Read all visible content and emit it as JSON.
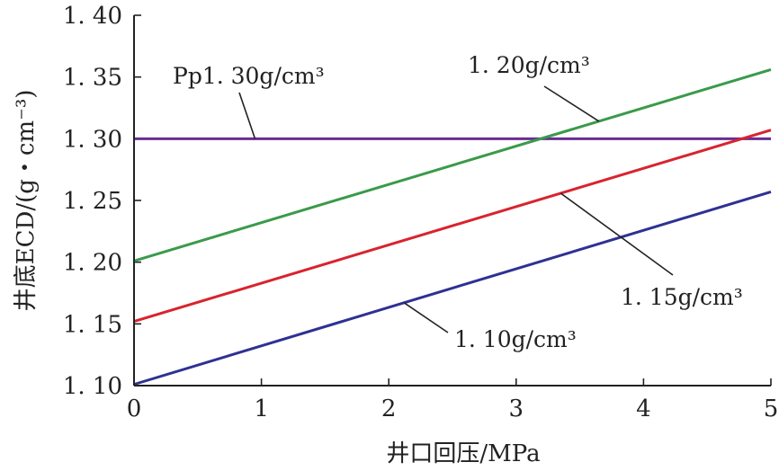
{
  "chart_data": {
    "type": "line",
    "xlabel": "井口回压/MPa",
    "ylabel": "井底ECD/(g・cm⁻³)",
    "xlim": [
      0,
      5
    ],
    "ylim": [
      1.1,
      1.4
    ],
    "x_ticks": [
      0,
      1,
      2,
      3,
      4,
      5
    ],
    "y_ticks": [
      1.1,
      1.15,
      1.2,
      1.25,
      1.3,
      1.35,
      1.4
    ],
    "x_tick_labels": [
      "0",
      "1",
      "2",
      "3",
      "4",
      "5"
    ],
    "y_tick_labels": [
      "1. 10",
      "1. 15",
      "1. 20",
      "1. 25",
      "1. 30",
      "1. 35",
      "1. 40"
    ],
    "grid": false,
    "series": [
      {
        "key": "pp",
        "label": "Pp1. 30g/cm³",
        "color": "#6a2c91",
        "x": [
          0,
          5
        ],
        "y": [
          1.3,
          1.3
        ]
      },
      {
        "key": "d120",
        "label": "1. 20g/cm³",
        "color": "#3a9a4a",
        "x": [
          0,
          5
        ],
        "y": [
          1.201,
          1.356
        ]
      },
      {
        "key": "d115",
        "label": "1. 15g/cm³",
        "color": "#d9232e",
        "x": [
          0,
          5
        ],
        "y": [
          1.152,
          1.307
        ]
      },
      {
        "key": "d110",
        "label": "1. 10g/cm³",
        "color": "#2e3192",
        "x": [
          0,
          5
        ],
        "y": [
          1.101,
          1.257
        ]
      }
    ]
  }
}
